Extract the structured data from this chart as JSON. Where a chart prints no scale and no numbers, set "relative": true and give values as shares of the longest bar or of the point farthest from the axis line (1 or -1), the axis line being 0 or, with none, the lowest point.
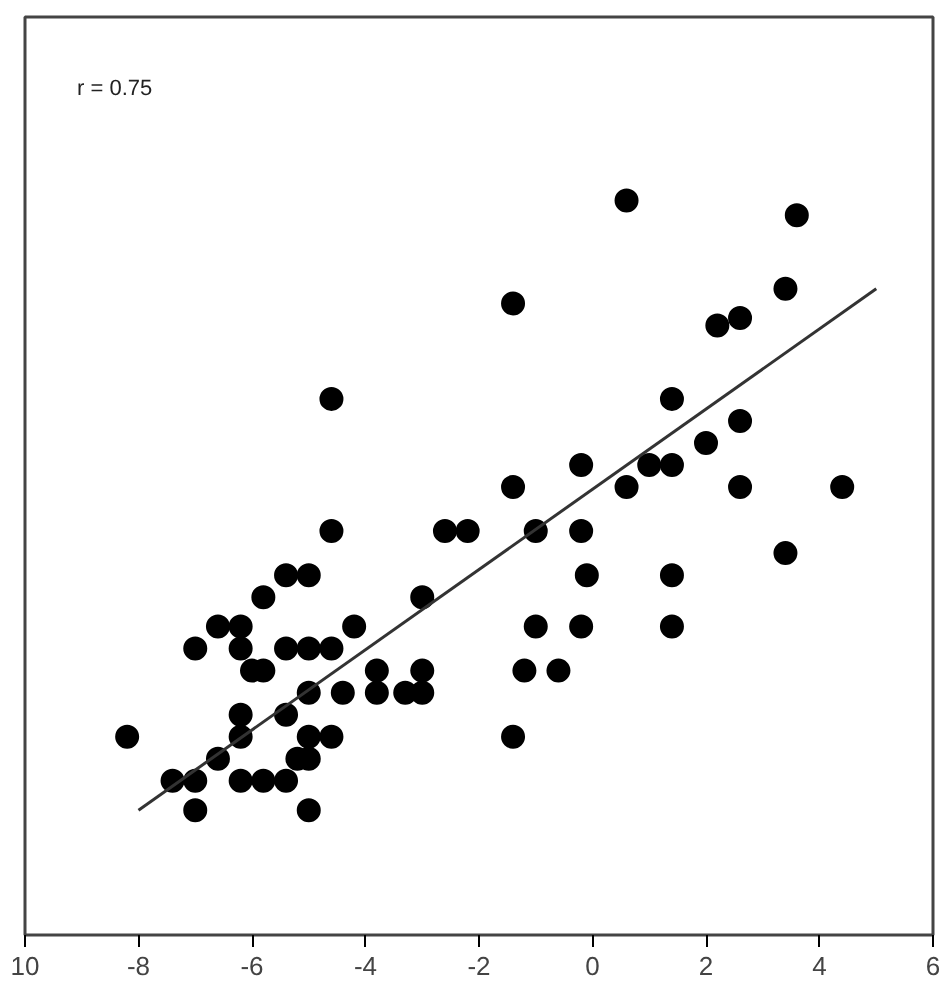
{
  "chart_data": {
    "type": "scatter",
    "relative": true,
    "marker": "circle",
    "grid": false,
    "xlim": [
      -10,
      6
    ],
    "xticks": [
      {
        "value": -10,
        "label": "10"
      },
      -8,
      -6,
      -4,
      -2,
      0,
      2,
      4,
      6
    ],
    "annotations": [
      "r = 0.75"
    ],
    "series": [
      {
        "color": "#000000",
        "x": [
          -8.2,
          -7.4,
          -7.0,
          -7.0,
          -7.0,
          -6.6,
          -6.6,
          -6.2,
          -6.2,
          -6.2,
          -6.2,
          -6.2,
          -6.0,
          -5.8,
          -5.8,
          -5.8,
          -5.4,
          -5.4,
          -5.4,
          -5.4,
          -5.2,
          -5.0,
          -5.0,
          -5.0,
          -5.0,
          -5.0,
          -5.0,
          -4.6,
          -4.6,
          -4.6,
          -4.6,
          -4.4,
          -4.2,
          -3.8,
          -3.8,
          -3.3,
          -3.0,
          -3.0,
          -3.0,
          -2.6,
          -2.2,
          -1.4,
          -1.4,
          -1.4,
          -1.2,
          -1.0,
          -1.0,
          -0.6,
          -0.2,
          -0.2,
          -0.2,
          -0.1,
          0.6,
          0.6,
          1.0,
          1.4,
          1.4,
          1.4,
          1.4,
          2.0,
          2.2,
          2.6,
          2.6,
          2.6,
          3.4,
          3.4,
          3.6,
          4.4
        ],
        "values": [
          0.27,
          0.21,
          0.21,
          0.17,
          0.39,
          0.42,
          0.24,
          0.42,
          0.39,
          0.3,
          0.27,
          0.21,
          0.36,
          0.36,
          0.21,
          0.46,
          0.49,
          0.39,
          0.3,
          0.21,
          0.24,
          0.49,
          0.39,
          0.33,
          0.27,
          0.24,
          0.17,
          0.73,
          0.55,
          0.39,
          0.27,
          0.33,
          0.42,
          0.36,
          0.33,
          0.33,
          0.33,
          0.36,
          0.46,
          0.55,
          0.55,
          0.86,
          0.61,
          0.27,
          0.36,
          0.55,
          0.42,
          0.36,
          0.64,
          0.55,
          0.42,
          0.49,
          1.0,
          0.61,
          0.64,
          0.73,
          0.64,
          0.49,
          0.42,
          0.67,
          0.83,
          0.84,
          0.7,
          0.61,
          0.88,
          0.52,
          0.98,
          0.61
        ]
      },
      {
        "type": "line",
        "marker": "none",
        "line_style": "solid",
        "color": "#333333",
        "x": [
          -8.0,
          5.0
        ],
        "values": [
          0.17,
          0.88
        ]
      }
    ]
  }
}
